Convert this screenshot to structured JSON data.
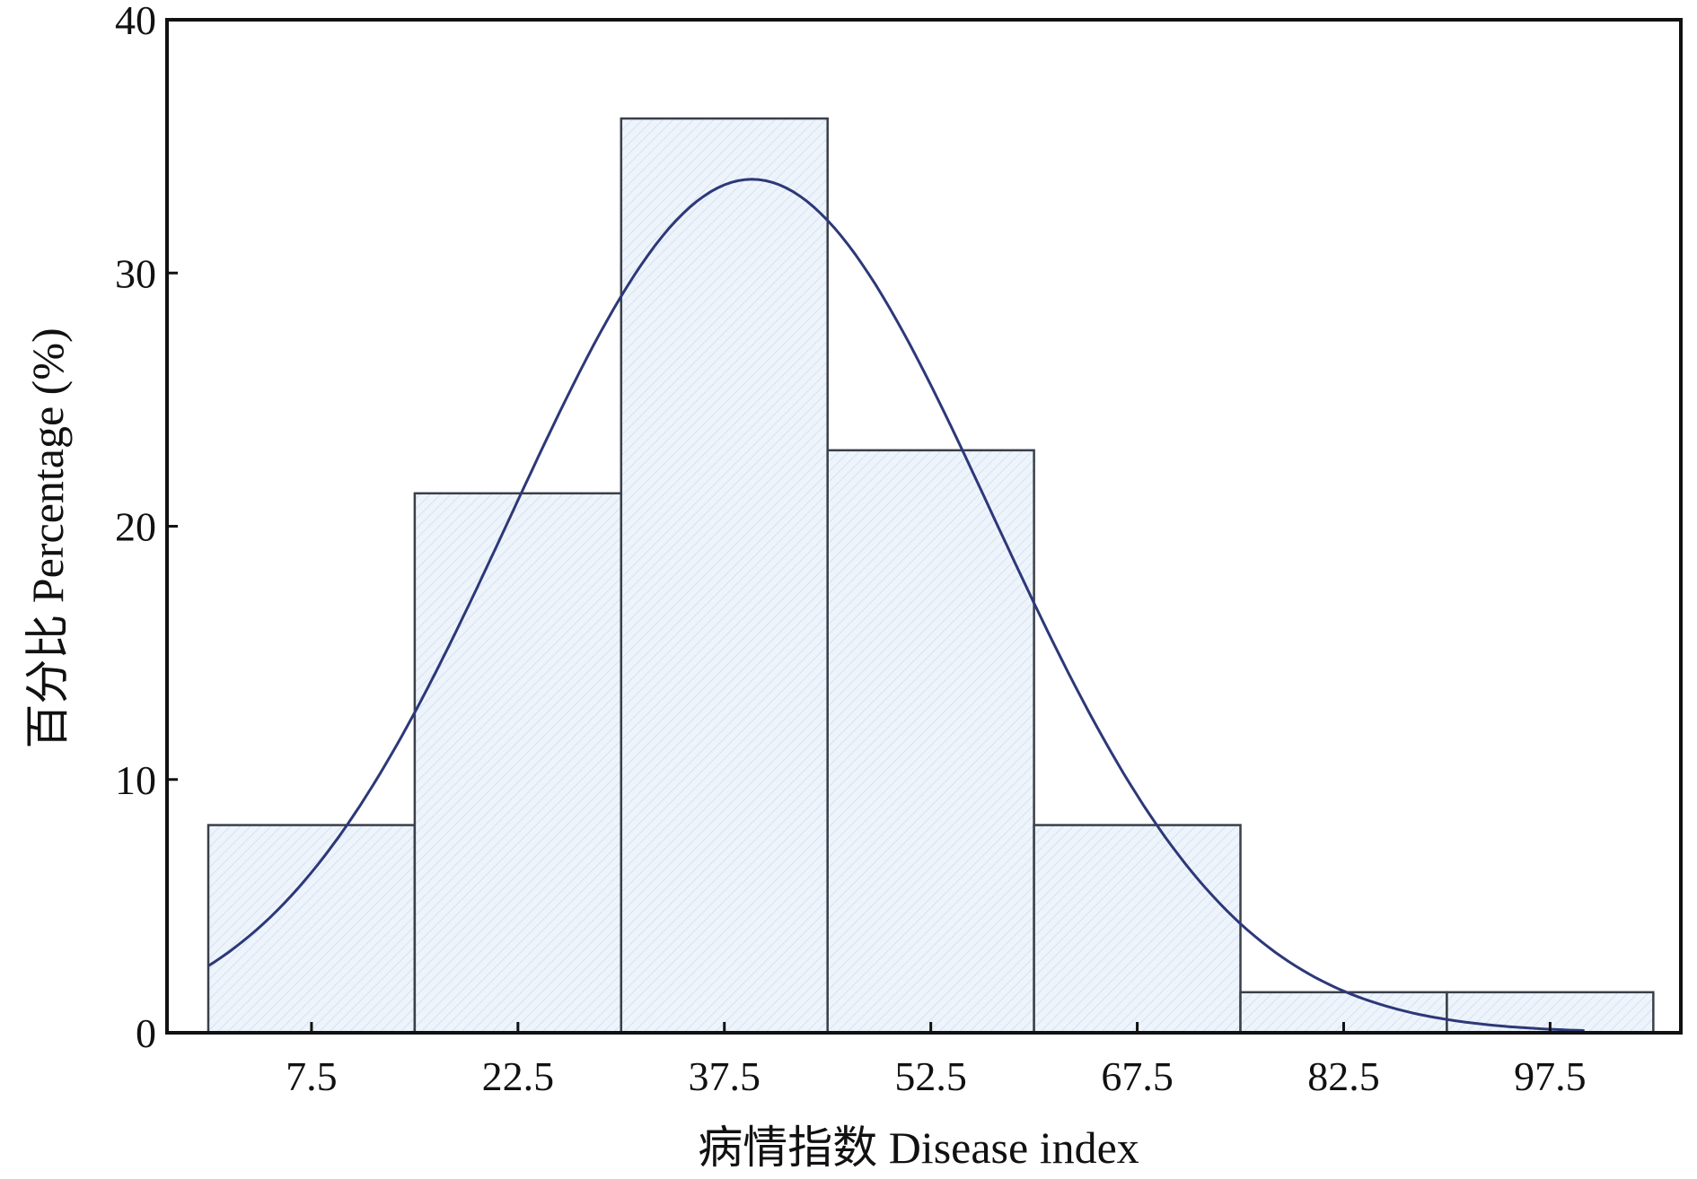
{
  "chart_data": {
    "type": "bar",
    "subtype": "histogram",
    "xlabel": "病情指数  Disease index",
    "ylabel": "百分比 Percentage (%)",
    "ylim": [
      0,
      40
    ],
    "xlim": [
      -3,
      107
    ],
    "bin_width": 15,
    "categories": [
      "7.5",
      "22.5",
      "37.5",
      "52.5",
      "67.5",
      "82.5",
      "97.5"
    ],
    "x": [
      7.5,
      22.5,
      37.5,
      52.5,
      67.5,
      82.5,
      97.5
    ],
    "values": [
      8.2,
      21.3,
      36.1,
      23.0,
      8.2,
      1.6,
      1.6
    ],
    "y_ticks": [
      "0",
      "10",
      "20",
      "30",
      "40"
    ],
    "y_tick_values": [
      0,
      10,
      20,
      30,
      40
    ],
    "fitted_curve": {
      "type": "normal",
      "mean": 39.5,
      "sd": 17.5,
      "peak": 33.7,
      "x_range": [
        0,
        100
      ]
    },
    "grid": false,
    "legend": "none",
    "colors": {
      "bar_fill": "#eef4fb",
      "bar_stroke": "#3a3f4a",
      "curve": "#2c3878",
      "axis": "#111111"
    }
  }
}
